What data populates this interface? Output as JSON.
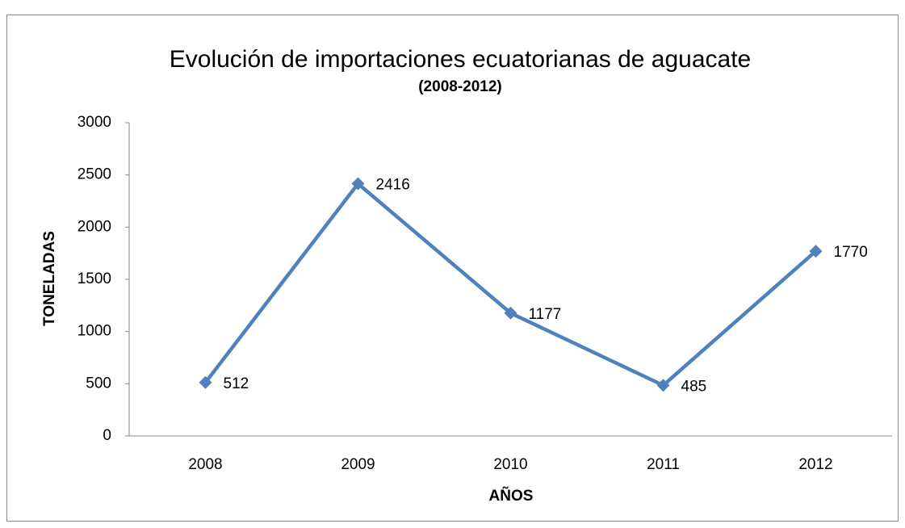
{
  "chart_data": {
    "type": "line",
    "title": "Evolución de importaciones ecuatorianas de aguacate",
    "subtitle": "(2008-2012)",
    "x_label": "AÑOS",
    "y_label": "TONELADAS",
    "categories": [
      "2008",
      "2009",
      "2010",
      "2011",
      "2012"
    ],
    "series": [
      {
        "name": "TONELADAS",
        "color": "#4f81bd",
        "values": [
          512,
          2416,
          1177,
          485,
          1770
        ]
      }
    ],
    "ylim": [
      0,
      3000
    ],
    "yticks": [
      0,
      500,
      1000,
      1500,
      2000,
      2500,
      3000
    ],
    "grid": false,
    "data_labels": true
  }
}
